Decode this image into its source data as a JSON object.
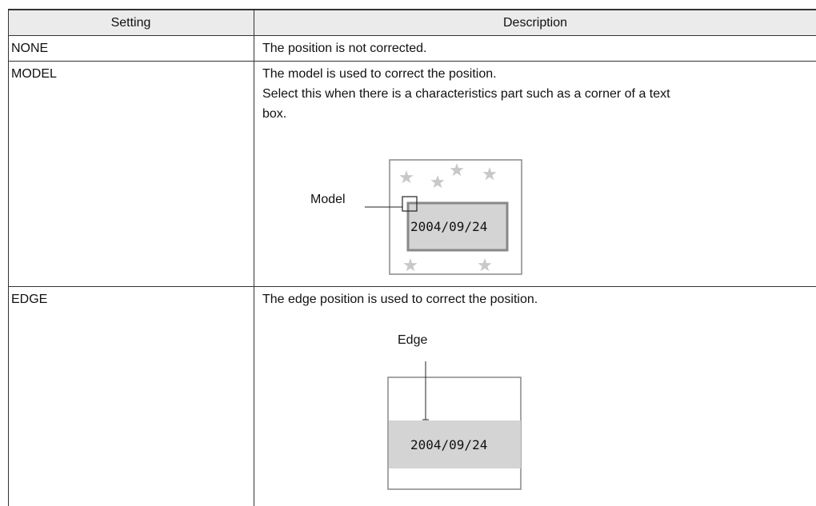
{
  "table": {
    "header": [
      "Setting",
      "Description"
    ],
    "rows": [
      {
        "setting": "NONE",
        "description": [
          "The position is not corrected."
        ]
      },
      {
        "setting": "MODEL",
        "description": [
          "The model is used to correct the position.",
          "Select this when there is a characteristics part such as a corner of a text box."
        ],
        "figure": {
          "label": "Model",
          "date": "2004/09/24"
        }
      },
      {
        "setting": "EDGE",
        "description": [
          "The edge position is used to correct the position."
        ],
        "figure": {
          "label": "Edge",
          "date": "2004/09/24"
        }
      }
    ]
  }
}
